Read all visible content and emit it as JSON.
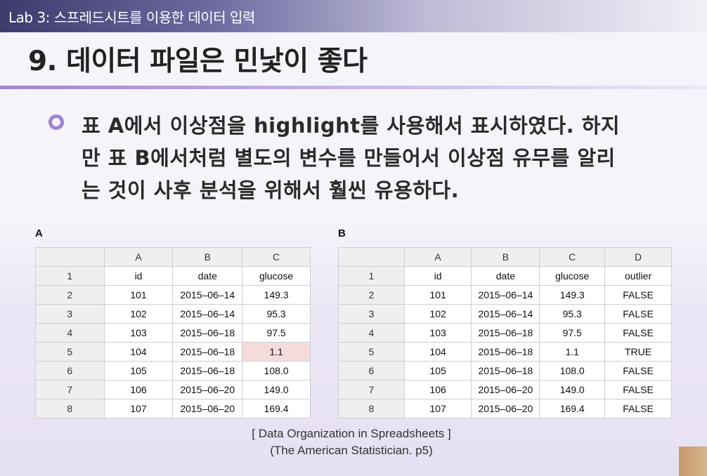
{
  "header": {
    "lab_title": "Lab 3: 스프레드시트를 이용한 데이터 입력"
  },
  "slide": {
    "title": "9. 데이터 파일은 민낯이 좋다",
    "bullet_lines": [
      "표 A에서 이상점을 highlight를 사용해서 표시하였다. 하지",
      "만 표 B에서처럼 별도의 변수를 만들어서 이상점 유무를 알리",
      "는 것이 사후 분석을 위해서 훨씬 유용하다."
    ]
  },
  "table_a": {
    "label": "A",
    "columns": [
      "",
      "A",
      "B",
      "C"
    ],
    "rows": [
      [
        "1",
        "id",
        "date",
        "glucose"
      ],
      [
        "2",
        "101",
        "2015–06–14",
        "149.3"
      ],
      [
        "3",
        "102",
        "2015–06–14",
        "95.3"
      ],
      [
        "4",
        "103",
        "2015–06–18",
        "97.5"
      ],
      [
        "5",
        "104",
        "2015–06–18",
        "1.1"
      ],
      [
        "6",
        "105",
        "2015–06–18",
        "108.0"
      ],
      [
        "7",
        "106",
        "2015–06–20",
        "149.0"
      ],
      [
        "8",
        "107",
        "2015–06–20",
        "169.4"
      ]
    ],
    "highlight_cell": {
      "row": 4,
      "col": 3,
      "color": "#f4dcdc"
    }
  },
  "table_b": {
    "label": "B",
    "columns": [
      "",
      "A",
      "B",
      "C",
      "D"
    ],
    "rows": [
      [
        "1",
        "id",
        "date",
        "glucose",
        "outlier"
      ],
      [
        "2",
        "101",
        "2015–06–14",
        "149.3",
        "FALSE"
      ],
      [
        "3",
        "102",
        "2015–06–14",
        "95.3",
        "FALSE"
      ],
      [
        "4",
        "103",
        "2015–06–18",
        "97.5",
        "FALSE"
      ],
      [
        "5",
        "104",
        "2015–06–18",
        "1.1",
        "TRUE"
      ],
      [
        "6",
        "105",
        "2015–06–18",
        "108.0",
        "FALSE"
      ],
      [
        "7",
        "106",
        "2015–06–20",
        "149.0",
        "FALSE"
      ],
      [
        "8",
        "107",
        "2015–06–20",
        "169.4",
        "FALSE"
      ]
    ]
  },
  "citation": {
    "line1": "[ Data Organization in Spreadsheets ]",
    "line2": "(The American Statistician. p5)"
  },
  "colors": {
    "accent": "#9b82d3",
    "header_bar": "#3d3a6c",
    "highlight": "#f4dcdc"
  },
  "icons": {
    "bullet": "ring-bullet-icon"
  }
}
